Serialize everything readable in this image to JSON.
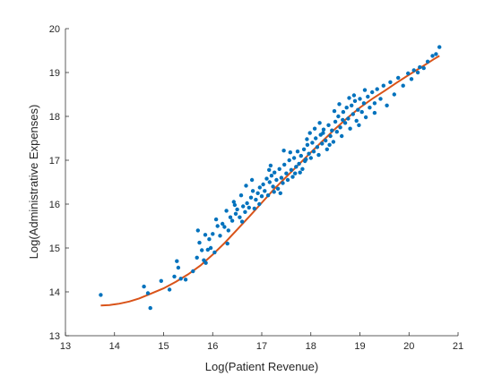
{
  "chart_data": {
    "type": "scatter",
    "title": "",
    "xlabel": "Log(Patient Revenue)",
    "ylabel": "Log(Administrative Expenses)",
    "xlim": [
      13,
      21
    ],
    "ylim": [
      13,
      20
    ],
    "xticks": [
      13,
      14,
      15,
      16,
      17,
      18,
      19,
      20,
      21
    ],
    "yticks": [
      13,
      14,
      15,
      16,
      17,
      18,
      19,
      20
    ],
    "grid": false,
    "legend": "none",
    "colors": {
      "points": "#0072BD",
      "fit": "#D95319",
      "axes": "#262626"
    },
    "series": [
      {
        "kind": "scatter",
        "points": [
          [
            13.72,
            13.93
          ],
          [
            14.6,
            14.12
          ],
          [
            14.68,
            13.97
          ],
          [
            14.73,
            13.63
          ],
          [
            14.95,
            14.25
          ],
          [
            15.12,
            14.05
          ],
          [
            15.22,
            14.35
          ],
          [
            15.27,
            14.7
          ],
          [
            15.3,
            14.55
          ],
          [
            15.35,
            14.3
          ],
          [
            15.45,
            14.28
          ],
          [
            15.6,
            14.47
          ],
          [
            15.68,
            14.78
          ],
          [
            15.7,
            15.4
          ],
          [
            15.73,
            15.12
          ],
          [
            15.78,
            14.95
          ],
          [
            15.82,
            14.72
          ],
          [
            15.86,
            14.66
          ],
          [
            15.9,
            14.96
          ],
          [
            15.93,
            15.2
          ],
          [
            15.96,
            15.0
          ],
          [
            16.0,
            15.32
          ],
          [
            16.04,
            14.9
          ],
          [
            16.07,
            15.65
          ],
          [
            16.1,
            15.5
          ],
          [
            16.15,
            15.28
          ],
          [
            16.2,
            15.55
          ],
          [
            16.24,
            15.48
          ],
          [
            16.28,
            15.85
          ],
          [
            16.32,
            15.4
          ],
          [
            16.36,
            15.7
          ],
          [
            16.4,
            15.62
          ],
          [
            16.43,
            16.05
          ],
          [
            16.47,
            15.78
          ],
          [
            16.5,
            15.88
          ],
          [
            16.55,
            15.7
          ],
          [
            16.58,
            16.2
          ],
          [
            16.62,
            15.95
          ],
          [
            16.66,
            15.82
          ],
          [
            16.7,
            16.02
          ],
          [
            16.74,
            15.92
          ],
          [
            16.78,
            16.15
          ],
          [
            16.82,
            16.3
          ],
          [
            16.85,
            15.9
          ],
          [
            16.88,
            16.1
          ],
          [
            16.92,
            16.25
          ],
          [
            16.96,
            16.38
          ],
          [
            17.0,
            16.18
          ],
          [
            17.03,
            16.45
          ],
          [
            17.06,
            16.3
          ],
          [
            17.1,
            16.58
          ],
          [
            17.13,
            16.2
          ],
          [
            17.16,
            16.5
          ],
          [
            17.2,
            16.65
          ],
          [
            17.23,
            16.4
          ],
          [
            17.26,
            16.72
          ],
          [
            17.3,
            16.55
          ],
          [
            17.33,
            16.35
          ],
          [
            17.36,
            16.8
          ],
          [
            17.4,
            16.6
          ],
          [
            17.43,
            16.48
          ],
          [
            17.46,
            16.9
          ],
          [
            17.5,
            16.7
          ],
          [
            17.53,
            16.55
          ],
          [
            17.56,
            17.0
          ],
          [
            17.6,
            16.78
          ],
          [
            17.63,
            16.62
          ],
          [
            17.66,
            17.05
          ],
          [
            17.7,
            16.85
          ],
          [
            17.73,
            17.2
          ],
          [
            17.76,
            16.92
          ],
          [
            17.8,
            17.1
          ],
          [
            17.83,
            16.8
          ],
          [
            17.86,
            17.25
          ],
          [
            17.9,
            17.02
          ],
          [
            17.93,
            17.35
          ],
          [
            17.96,
            17.15
          ],
          [
            18.0,
            17.05
          ],
          [
            18.03,
            17.4
          ],
          [
            18.06,
            17.2
          ],
          [
            18.1,
            17.5
          ],
          [
            18.13,
            17.3
          ],
          [
            18.16,
            17.12
          ],
          [
            18.2,
            17.58
          ],
          [
            18.23,
            17.38
          ],
          [
            18.26,
            17.7
          ],
          [
            18.3,
            17.45
          ],
          [
            18.33,
            17.25
          ],
          [
            18.36,
            17.8
          ],
          [
            18.4,
            17.55
          ],
          [
            18.43,
            17.68
          ],
          [
            18.46,
            17.42
          ],
          [
            18.5,
            17.88
          ],
          [
            18.53,
            17.65
          ],
          [
            18.56,
            18.0
          ],
          [
            18.6,
            17.75
          ],
          [
            18.63,
            17.55
          ],
          [
            18.66,
            18.1
          ],
          [
            18.7,
            17.85
          ],
          [
            18.73,
            18.2
          ],
          [
            18.76,
            17.95
          ],
          [
            18.8,
            17.72
          ],
          [
            18.83,
            18.25
          ],
          [
            18.86,
            18.05
          ],
          [
            18.9,
            18.35
          ],
          [
            18.93,
            17.9
          ],
          [
            18.96,
            18.15
          ],
          [
            19.0,
            18.4
          ],
          [
            19.04,
            18.1
          ],
          [
            19.08,
            18.3
          ],
          [
            19.12,
            17.98
          ],
          [
            19.16,
            18.45
          ],
          [
            19.2,
            18.2
          ],
          [
            19.25,
            18.55
          ],
          [
            19.3,
            18.3
          ],
          [
            19.35,
            18.62
          ],
          [
            19.42,
            18.4
          ],
          [
            19.48,
            18.7
          ],
          [
            19.55,
            18.25
          ],
          [
            19.62,
            18.78
          ],
          [
            19.7,
            18.5
          ],
          [
            19.78,
            18.88
          ],
          [
            19.88,
            18.7
          ],
          [
            19.98,
            18.98
          ],
          [
            20.05,
            18.85
          ],
          [
            20.1,
            19.05
          ],
          [
            20.18,
            19.0
          ],
          [
            20.22,
            19.12
          ],
          [
            20.3,
            19.1
          ],
          [
            20.38,
            19.25
          ],
          [
            20.48,
            19.38
          ],
          [
            20.55,
            19.42
          ],
          [
            20.62,
            19.58
          ],
          [
            16.3,
            15.1
          ],
          [
            16.68,
            16.42
          ],
          [
            16.95,
            16.0
          ],
          [
            17.18,
            16.88
          ],
          [
            17.38,
            16.25
          ],
          [
            17.58,
            17.18
          ],
          [
            17.78,
            16.72
          ],
          [
            17.98,
            17.62
          ],
          [
            18.18,
            17.85
          ],
          [
            18.38,
            17.35
          ],
          [
            18.58,
            18.28
          ],
          [
            18.78,
            18.42
          ],
          [
            18.98,
            17.8
          ],
          [
            17.45,
            17.22
          ],
          [
            17.25,
            16.28
          ],
          [
            17.88,
            16.98
          ],
          [
            18.08,
            17.72
          ],
          [
            16.8,
            16.55
          ],
          [
            16.6,
            15.6
          ],
          [
            15.85,
            15.3
          ],
          [
            19.3,
            18.08
          ],
          [
            19.1,
            18.6
          ],
          [
            18.48,
            18.12
          ],
          [
            17.68,
            16.7
          ],
          [
            17.15,
            16.78
          ],
          [
            18.65,
            17.92
          ],
          [
            18.88,
            18.48
          ],
          [
            16.45,
            15.98
          ],
          [
            17.92,
            17.48
          ],
          [
            18.25,
            17.62
          ]
        ]
      },
      {
        "kind": "line",
        "points": [
          [
            13.72,
            13.69
          ],
          [
            13.9,
            13.7
          ],
          [
            14.1,
            13.73
          ],
          [
            14.3,
            13.78
          ],
          [
            14.5,
            13.85
          ],
          [
            14.7,
            13.94
          ],
          [
            15.0,
            14.08
          ],
          [
            15.25,
            14.23
          ],
          [
            15.5,
            14.4
          ],
          [
            15.75,
            14.6
          ],
          [
            16.0,
            14.85
          ],
          [
            16.25,
            15.12
          ],
          [
            16.5,
            15.42
          ],
          [
            16.75,
            15.72
          ],
          [
            17.0,
            16.03
          ],
          [
            17.25,
            16.34
          ],
          [
            17.5,
            16.62
          ],
          [
            17.75,
            16.9
          ],
          [
            18.0,
            17.18
          ],
          [
            18.25,
            17.45
          ],
          [
            18.5,
            17.72
          ],
          [
            18.75,
            17.97
          ],
          [
            19.0,
            18.2
          ],
          [
            19.25,
            18.4
          ],
          [
            19.5,
            18.58
          ],
          [
            19.75,
            18.77
          ],
          [
            20.0,
            18.95
          ],
          [
            20.25,
            19.12
          ],
          [
            20.5,
            19.3
          ],
          [
            20.62,
            19.38
          ]
        ]
      }
    ]
  }
}
